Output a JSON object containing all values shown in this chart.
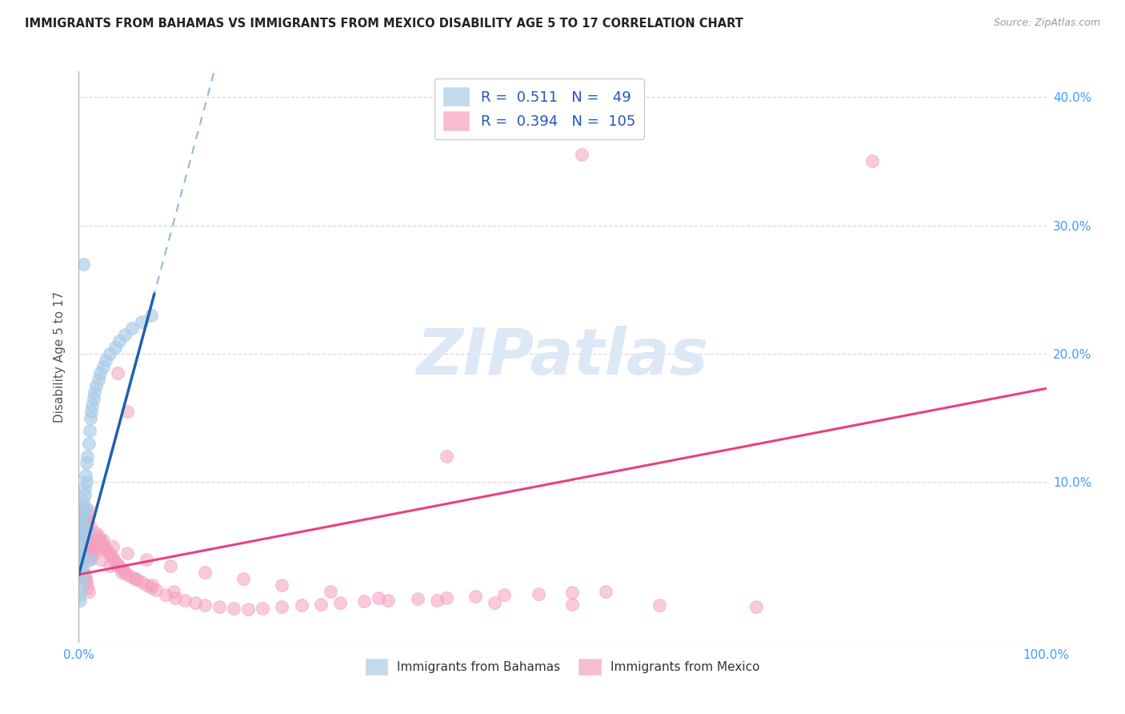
{
  "title": "IMMIGRANTS FROM BAHAMAS VS IMMIGRANTS FROM MEXICO DISABILITY AGE 5 TO 17 CORRELATION CHART",
  "source": "Source: ZipAtlas.com",
  "ylabel": "Disability Age 5 to 17",
  "xlim": [
    0,
    1.0
  ],
  "ylim": [
    -0.025,
    0.42
  ],
  "bahamas_R": 0.511,
  "bahamas_N": 49,
  "mexico_R": 0.394,
  "mexico_N": 105,
  "bahamas_color": "#a8cce8",
  "bahamas_edge_color": "#a8cce8",
  "mexico_color": "#f4a0be",
  "mexico_edge_color": "#f4a0be",
  "bahamas_line_color": "#2060b0",
  "bahamas_dash_color": "#90b8e0",
  "mexico_line_color": "#e84080",
  "grid_color": "#d8d8d8",
  "tick_color": "#4499ff",
  "watermark_color": "#dce8f5",
  "bah_intercept": 0.028,
  "bah_slope": 2.8,
  "mex_intercept": 0.028,
  "mex_slope": 0.145,
  "bah_x": [
    0.001,
    0.001,
    0.001,
    0.002,
    0.002,
    0.002,
    0.002,
    0.003,
    0.003,
    0.003,
    0.003,
    0.004,
    0.004,
    0.005,
    0.005,
    0.006,
    0.006,
    0.007,
    0.008,
    0.008,
    0.009,
    0.01,
    0.011,
    0.012,
    0.013,
    0.014,
    0.015,
    0.016,
    0.018,
    0.02,
    0.022,
    0.025,
    0.028,
    0.032,
    0.038,
    0.042,
    0.048,
    0.055,
    0.065,
    0.075,
    0.001,
    0.001,
    0.002,
    0.003,
    0.004,
    0.005,
    0.007,
    0.009,
    0.012
  ],
  "bah_y": [
    0.055,
    0.048,
    0.042,
    0.06,
    0.052,
    0.045,
    0.038,
    0.065,
    0.058,
    0.072,
    0.035,
    0.075,
    0.068,
    0.085,
    0.078,
    0.095,
    0.09,
    0.105,
    0.115,
    0.1,
    0.12,
    0.13,
    0.14,
    0.15,
    0.155,
    0.16,
    0.165,
    0.17,
    0.175,
    0.18,
    0.185,
    0.19,
    0.195,
    0.2,
    0.205,
    0.21,
    0.215,
    0.22,
    0.225,
    0.23,
    0.012,
    0.008,
    0.018,
    0.025,
    0.03,
    0.27,
    0.08,
    0.062,
    0.04
  ],
  "mex_x": [
    0.001,
    0.002,
    0.003,
    0.003,
    0.004,
    0.004,
    0.005,
    0.005,
    0.006,
    0.006,
    0.007,
    0.007,
    0.008,
    0.008,
    0.009,
    0.009,
    0.01,
    0.01,
    0.011,
    0.012,
    0.013,
    0.014,
    0.015,
    0.016,
    0.017,
    0.018,
    0.019,
    0.02,
    0.022,
    0.024,
    0.026,
    0.028,
    0.03,
    0.032,
    0.034,
    0.036,
    0.038,
    0.04,
    0.042,
    0.045,
    0.048,
    0.05,
    0.055,
    0.06,
    0.065,
    0.07,
    0.075,
    0.08,
    0.09,
    0.1,
    0.11,
    0.12,
    0.13,
    0.145,
    0.16,
    0.175,
    0.19,
    0.21,
    0.23,
    0.25,
    0.27,
    0.295,
    0.32,
    0.35,
    0.38,
    0.41,
    0.44,
    0.475,
    0.51,
    0.545,
    0.003,
    0.005,
    0.008,
    0.012,
    0.018,
    0.025,
    0.035,
    0.05,
    0.07,
    0.095,
    0.13,
    0.17,
    0.21,
    0.26,
    0.31,
    0.37,
    0.43,
    0.51,
    0.6,
    0.7,
    0.004,
    0.007,
    0.011,
    0.016,
    0.023,
    0.032,
    0.044,
    0.058,
    0.076,
    0.098,
    0.82,
    0.52,
    0.38,
    0.05,
    0.04
  ],
  "mex_y": [
    0.055,
    0.048,
    0.065,
    0.042,
    0.07,
    0.038,
    0.058,
    0.032,
    0.062,
    0.028,
    0.068,
    0.025,
    0.072,
    0.022,
    0.075,
    0.018,
    0.078,
    0.015,
    0.04,
    0.042,
    0.044,
    0.046,
    0.048,
    0.05,
    0.052,
    0.054,
    0.056,
    0.058,
    0.055,
    0.052,
    0.05,
    0.048,
    0.046,
    0.044,
    0.042,
    0.04,
    0.038,
    0.036,
    0.034,
    0.032,
    0.03,
    0.028,
    0.026,
    0.024,
    0.022,
    0.02,
    0.018,
    0.016,
    0.012,
    0.01,
    0.008,
    0.006,
    0.004,
    0.003,
    0.002,
    0.001,
    0.002,
    0.003,
    0.004,
    0.005,
    0.006,
    0.007,
    0.008,
    0.009,
    0.01,
    0.011,
    0.012,
    0.013,
    0.014,
    0.015,
    0.08,
    0.075,
    0.07,
    0.065,
    0.06,
    0.055,
    0.05,
    0.045,
    0.04,
    0.035,
    0.03,
    0.025,
    0.02,
    0.015,
    0.01,
    0.008,
    0.006,
    0.005,
    0.004,
    0.003,
    0.06,
    0.055,
    0.05,
    0.045,
    0.04,
    0.035,
    0.03,
    0.025,
    0.02,
    0.015,
    0.35,
    0.355,
    0.12,
    0.155,
    0.185
  ]
}
